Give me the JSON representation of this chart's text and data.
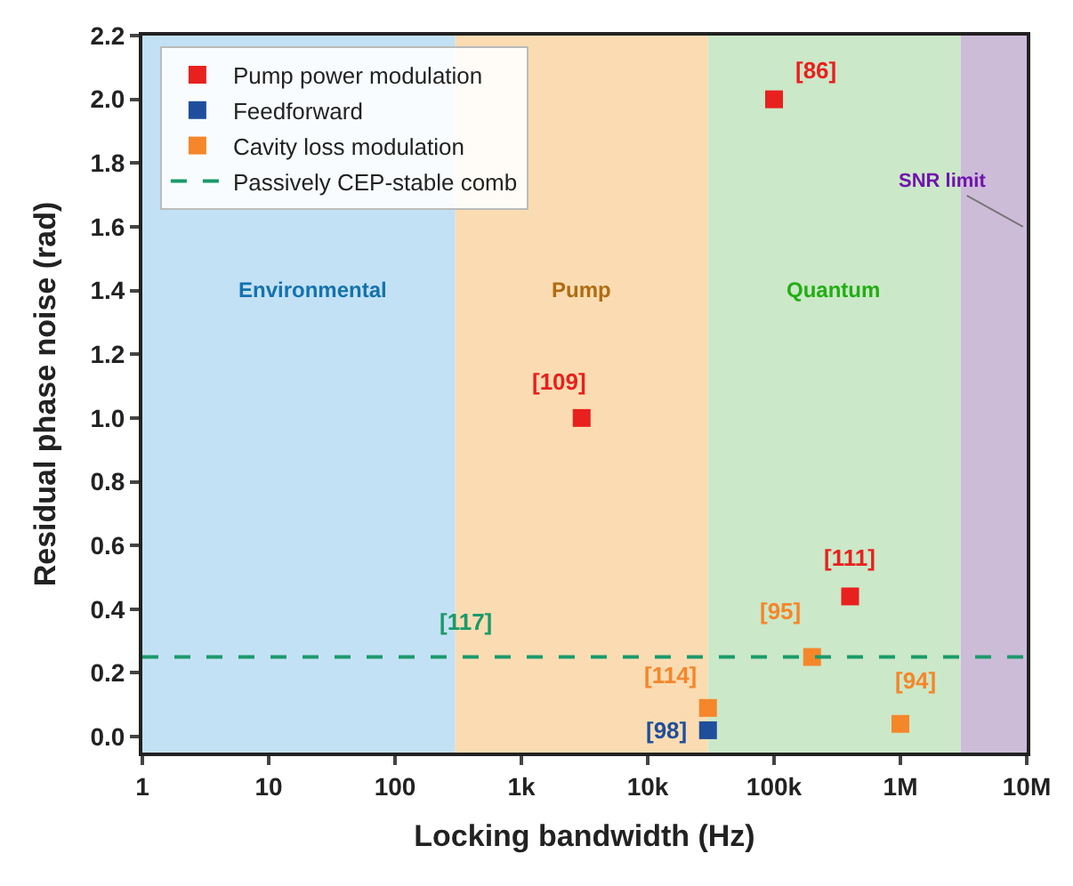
{
  "chart_data": {
    "type": "scatter",
    "xlabel": "Locking bandwidth (Hz)",
    "ylabel": "Residual phase noise (rad)",
    "log": "x",
    "grid": false,
    "legend": "top left",
    "marker": "square",
    "xlim": [
      1,
      10000000
    ],
    "ylim": [
      -0.05,
      2.2
    ],
    "xticks": [
      1,
      10,
      100,
      {
        "value": 1000,
        "label": "1k"
      },
      {
        "value": 10000,
        "label": "10k"
      },
      {
        "value": 100000,
        "label": "100k"
      },
      {
        "value": 1000000,
        "label": "1M"
      },
      {
        "value": 10000000,
        "label": "10M"
      }
    ],
    "yticks": [
      {
        "value": 0,
        "label": "0.0"
      },
      0.2,
      0.4,
      0.6,
      0.8,
      {
        "value": 1,
        "label": "1.0"
      },
      1.2,
      1.4,
      1.6,
      1.8,
      {
        "value": 2,
        "label": "2.0"
      },
      2.2
    ],
    "series": [
      {
        "name": "Pump power modulation",
        "color": "#e8201e",
        "x": [
          100000,
          3000,
          400000
        ],
        "values": [
          2.0,
          1.0,
          0.44
        ]
      },
      {
        "name": "Feedforward",
        "color": "#1f4e9c",
        "x": [
          30000
        ],
        "values": [
          0.02
        ]
      },
      {
        "name": "Cavity loss modulation",
        "color": "#f5862a",
        "x": [
          30000,
          200000,
          1000000
        ],
        "values": [
          0.09,
          0.25,
          0.04
        ]
      }
    ],
    "ref_lines": [
      {
        "axis": "y",
        "value": 0.25,
        "label": "Passively CEP-stable comb",
        "color": "#1a9a6a",
        "line_style": "dashed"
      }
    ],
    "bands": [
      {
        "axis": "x",
        "from": 1,
        "to": 300,
        "label": "Environmental",
        "color": "#c3e1f4"
      },
      {
        "axis": "x",
        "from": 300,
        "to": 30000,
        "label": "Pump",
        "color": "#fbdcb2"
      },
      {
        "axis": "x",
        "from": 30000,
        "to": 3000000,
        "label": "Quantum",
        "color": "#cbe8c8"
      },
      {
        "axis": "x",
        "from": 3000000,
        "to": 10000000,
        "label": "SNR limit",
        "color": "#cdbcd8"
      }
    ],
    "annotations": [
      {
        "text": "[86]",
        "x": 100000,
        "y": 2.0
      },
      {
        "text": "[109]",
        "x": 3000,
        "y": 1.0
      },
      {
        "text": "[111]",
        "x": 400000,
        "y": 0.44
      },
      {
        "text": "[95]",
        "x": 200000,
        "y": 0.25
      },
      {
        "text": "[114]",
        "x": 30000,
        "y": 0.09
      },
      {
        "text": "[98]",
        "x": 30000,
        "y": 0.02
      },
      {
        "text": "[94]",
        "x": 1000000,
        "y": 0.04
      },
      {
        "text": "[117]",
        "x": 360,
        "y": 0.25
      }
    ]
  }
}
